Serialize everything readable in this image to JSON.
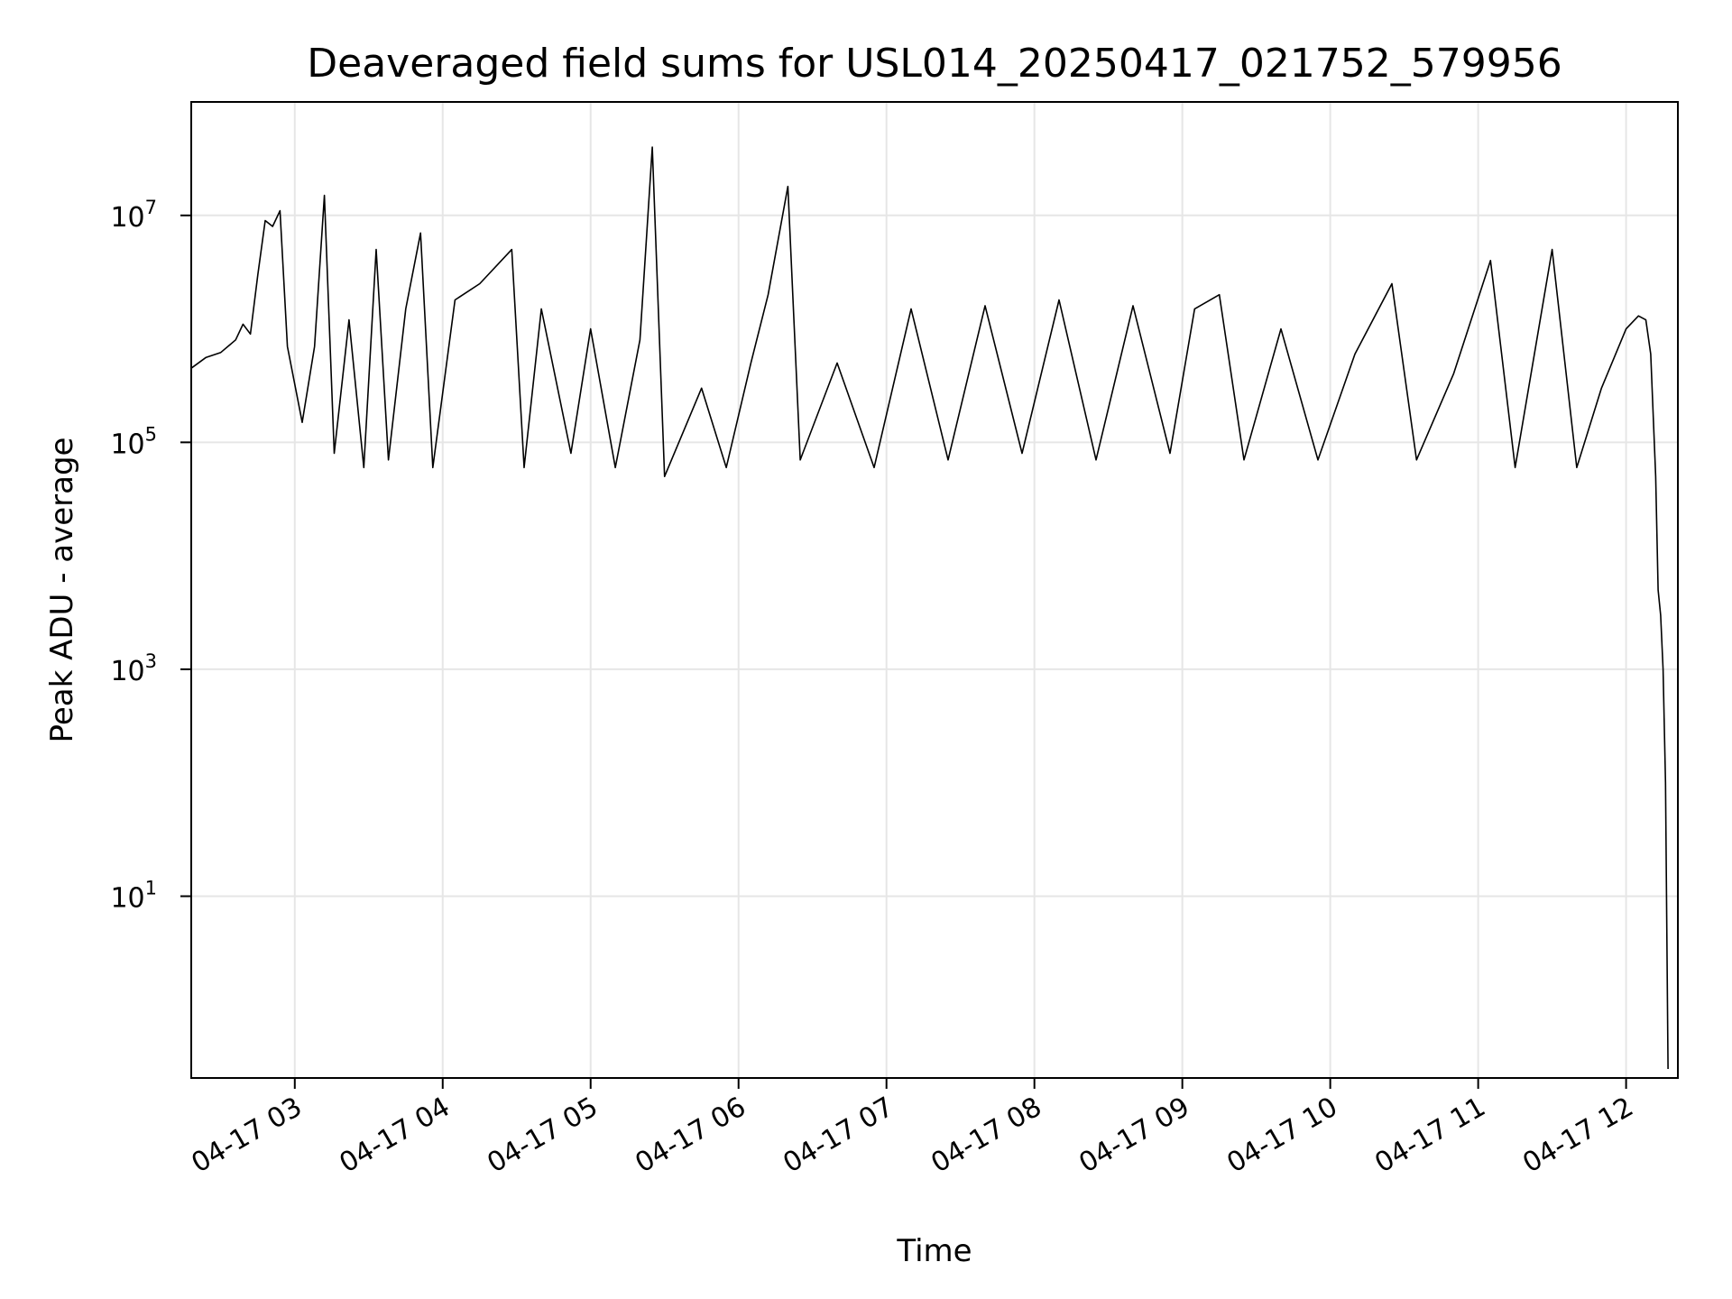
{
  "chart_data": {
    "type": "line",
    "title": "Deaveraged field sums for USL014_20250417_021752_579956",
    "xlabel": "Time",
    "ylabel": "Peak ADU - average",
    "yscale": "log",
    "grid": true,
    "color": "#000000",
    "x_ticks": [
      "04-17 03",
      "04-17 04",
      "04-17 05",
      "04-17 06",
      "04-17 07",
      "04-17 08",
      "04-17 09",
      "04-17 10",
      "04-17 11",
      "04-17 12"
    ],
    "y_ticks": [
      {
        "base": "10",
        "exp": "1",
        "value": 10
      },
      {
        "base": "10",
        "exp": "3",
        "value": 1000
      },
      {
        "base": "10",
        "exp": "5",
        "value": 100000
      },
      {
        "base": "10",
        "exp": "7",
        "value": 10000000
      }
    ],
    "xlim": [
      "2025-04-17 02:18",
      "2025-04-17 12:21"
    ],
    "ylim": [
      0.25,
      100000000
    ],
    "series": [
      {
        "points": [
          [
            "2025-04-17 02:18",
            450000
          ],
          [
            "2025-04-17 02:24",
            560000
          ],
          [
            "2025-04-17 02:30",
            620000
          ],
          [
            "2025-04-17 02:36",
            800000
          ],
          [
            "2025-04-17 02:39",
            1100000
          ],
          [
            "2025-04-17 02:42",
            900000
          ],
          [
            "2025-04-17 02:45",
            3000000
          ],
          [
            "2025-04-17 02:48",
            9000000
          ],
          [
            "2025-04-17 02:51",
            8000000
          ],
          [
            "2025-04-17 02:54",
            11000000
          ],
          [
            "2025-04-17 02:57",
            700000
          ],
          [
            "2025-04-17 03:03",
            150000
          ],
          [
            "2025-04-17 03:08",
            700000
          ],
          [
            "2025-04-17 03:12",
            15000000
          ],
          [
            "2025-04-17 03:16",
            80000
          ],
          [
            "2025-04-17 03:22",
            1200000
          ],
          [
            "2025-04-17 03:28",
            60000
          ],
          [
            "2025-04-17 03:33",
            5000000
          ],
          [
            "2025-04-17 03:38",
            70000
          ],
          [
            "2025-04-17 03:45",
            1500000
          ],
          [
            "2025-04-17 03:51",
            7000000
          ],
          [
            "2025-04-17 03:56",
            60000
          ],
          [
            "2025-04-17 04:05",
            1800000
          ],
          [
            "2025-04-17 04:15",
            2500000
          ],
          [
            "2025-04-17 04:28",
            5000000
          ],
          [
            "2025-04-17 04:33",
            60000
          ],
          [
            "2025-04-17 04:40",
            1500000
          ],
          [
            "2025-04-17 04:52",
            80000
          ],
          [
            "2025-04-17 05:00",
            1000000
          ],
          [
            "2025-04-17 05:10",
            60000
          ],
          [
            "2025-04-17 05:20",
            800000
          ],
          [
            "2025-04-17 05:25",
            40000000
          ],
          [
            "2025-04-17 05:30",
            50000
          ],
          [
            "2025-04-17 05:45",
            300000
          ],
          [
            "2025-04-17 05:55",
            60000
          ],
          [
            "2025-04-17 06:05",
            500000
          ],
          [
            "2025-04-17 06:12",
            2000000
          ],
          [
            "2025-04-17 06:20",
            18000000
          ],
          [
            "2025-04-17 06:25",
            70000
          ],
          [
            "2025-04-17 06:40",
            500000
          ],
          [
            "2025-04-17 06:55",
            60000
          ],
          [
            "2025-04-17 07:10",
            1500000
          ],
          [
            "2025-04-17 07:25",
            70000
          ],
          [
            "2025-04-17 07:40",
            1600000
          ],
          [
            "2025-04-17 07:55",
            80000
          ],
          [
            "2025-04-17 08:10",
            1800000
          ],
          [
            "2025-04-17 08:25",
            70000
          ],
          [
            "2025-04-17 08:40",
            1600000
          ],
          [
            "2025-04-17 08:55",
            80000
          ],
          [
            "2025-04-17 09:05",
            1500000
          ],
          [
            "2025-04-17 09:15",
            2000000
          ],
          [
            "2025-04-17 09:25",
            70000
          ],
          [
            "2025-04-17 09:40",
            1000000
          ],
          [
            "2025-04-17 09:55",
            70000
          ],
          [
            "2025-04-17 10:10",
            600000
          ],
          [
            "2025-04-17 10:25",
            2500000
          ],
          [
            "2025-04-17 10:35",
            70000
          ],
          [
            "2025-04-17 10:50",
            400000
          ],
          [
            "2025-04-17 11:05",
            4000000
          ],
          [
            "2025-04-17 11:15",
            60000
          ],
          [
            "2025-04-17 11:30",
            5000000
          ],
          [
            "2025-04-17 11:40",
            60000
          ],
          [
            "2025-04-17 11:50",
            300000
          ],
          [
            "2025-04-17 12:00",
            1000000
          ],
          [
            "2025-04-17 12:05",
            1300000
          ],
          [
            "2025-04-17 12:08",
            1200000
          ],
          [
            "2025-04-17 12:10",
            600000
          ],
          [
            "2025-04-17 12:12",
            50000
          ],
          [
            "2025-04-17 12:13",
            5000
          ],
          [
            "2025-04-17 12:14",
            3000
          ],
          [
            "2025-04-17 12:15",
            1000
          ],
          [
            "2025-04-17 12:16",
            100
          ],
          [
            "2025-04-17 12:17",
            0.3
          ]
        ]
      }
    ]
  }
}
